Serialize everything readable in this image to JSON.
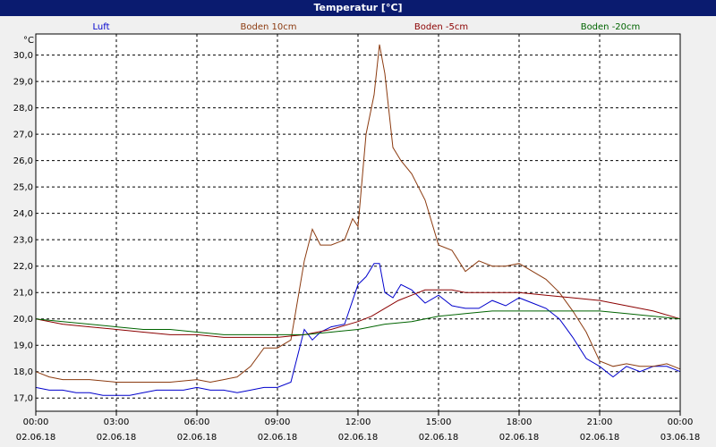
{
  "window": {
    "title": "Temperatur [°C]"
  },
  "chart_data": {
    "type": "line",
    "title": "Temperatur [°C]",
    "ylabel": "°C",
    "xlabel": "",
    "ylim": [
      16.5,
      30.8
    ],
    "xlim": [
      0,
      24
    ],
    "grid": true,
    "legend_position": "top",
    "y_ticks": [
      "17,0",
      "18,0",
      "19,0",
      "20,0",
      "21,0",
      "22,0",
      "23,0",
      "24,0",
      "25,0",
      "26,0",
      "27,0",
      "28,0",
      "29,0",
      "30,0"
    ],
    "y_tick_values": [
      17,
      18,
      19,
      20,
      21,
      22,
      23,
      24,
      25,
      26,
      27,
      28,
      29,
      30
    ],
    "x_ticks": [
      {
        "x": 0,
        "time": "00:00",
        "date": "02.06.18"
      },
      {
        "x": 3,
        "time": "03:00",
        "date": "02.06.18"
      },
      {
        "x": 6,
        "time": "06:00",
        "date": "02.06.18"
      },
      {
        "x": 9,
        "time": "09:00",
        "date": "02.06.18"
      },
      {
        "x": 12,
        "time": "12:00",
        "date": "02.06.18"
      },
      {
        "x": 15,
        "time": "15:00",
        "date": "02.06.18"
      },
      {
        "x": 18,
        "time": "18:00",
        "date": "02.06.18"
      },
      {
        "x": 21,
        "time": "21:00",
        "date": "02.06.18"
      },
      {
        "x": 24,
        "time": "00:00",
        "date": "03.06.18"
      }
    ],
    "series": [
      {
        "name": "Luft",
        "color": "#0000cc",
        "x": [
          0,
          0.5,
          1,
          1.5,
          2,
          2.5,
          3,
          3.5,
          4,
          4.5,
          5,
          5.5,
          6,
          6.5,
          7,
          7.5,
          8,
          8.5,
          9,
          9.5,
          10,
          10.3,
          10.6,
          11,
          11.5,
          12,
          12.3,
          12.6,
          12.8,
          13,
          13.3,
          13.6,
          14,
          14.5,
          15,
          15.5,
          16,
          16.5,
          17,
          17.5,
          18,
          18.5,
          19,
          19.5,
          20,
          20.5,
          21,
          21.5,
          22,
          22.5,
          23,
          23.5,
          24
        ],
        "y": [
          17.4,
          17.3,
          17.3,
          17.2,
          17.2,
          17.1,
          17.1,
          17.1,
          17.2,
          17.3,
          17.3,
          17.3,
          17.4,
          17.3,
          17.3,
          17.2,
          17.3,
          17.4,
          17.4,
          17.6,
          19.6,
          19.2,
          19.5,
          19.7,
          19.8,
          21.3,
          21.6,
          22.1,
          22.1,
          21.0,
          20.8,
          21.3,
          21.1,
          20.6,
          20.9,
          20.5,
          20.4,
          20.4,
          20.7,
          20.5,
          20.8,
          20.6,
          20.4,
          20.0,
          19.3,
          18.5,
          18.2,
          17.8,
          18.2,
          18.0,
          18.2,
          18.2,
          18.0
        ]
      },
      {
        "name": "Boden 10cm",
        "color": "#8b3a0f",
        "x": [
          0,
          0.5,
          1,
          2,
          3,
          4,
          5,
          6,
          6.5,
          7,
          7.5,
          8,
          8.5,
          9,
          9.5,
          10,
          10.3,
          10.6,
          11,
          11.5,
          11.8,
          12,
          12.3,
          12.6,
          12.8,
          13,
          13.3,
          13.6,
          14,
          14.5,
          15,
          15.5,
          16,
          16.5,
          17,
          17.5,
          18,
          18.5,
          19,
          19.5,
          20,
          20.5,
          21,
          21.5,
          22,
          22.5,
          23,
          23.5,
          24
        ],
        "y": [
          18.0,
          17.8,
          17.7,
          17.7,
          17.6,
          17.6,
          17.6,
          17.7,
          17.6,
          17.7,
          17.8,
          18.2,
          18.9,
          18.9,
          19.2,
          22.2,
          23.4,
          22.8,
          22.8,
          23.0,
          23.8,
          23.5,
          27.0,
          28.5,
          30.4,
          29.3,
          26.5,
          26.0,
          25.5,
          24.5,
          22.8,
          22.6,
          21.8,
          22.2,
          22.0,
          22.0,
          22.1,
          21.8,
          21.5,
          21.0,
          20.3,
          19.5,
          18.4,
          18.2,
          18.3,
          18.2,
          18.2,
          18.3,
          18.1
        ]
      },
      {
        "name": "Boden -5cm",
        "color": "#8b0000",
        "x": [
          0,
          1,
          2,
          3,
          4,
          5,
          6,
          7,
          8,
          9,
          10,
          11,
          12,
          12.5,
          13,
          13.5,
          14,
          14.5,
          15,
          15.5,
          16,
          17,
          18,
          19,
          20,
          21,
          22,
          23,
          24
        ],
        "y": [
          20.0,
          19.8,
          19.7,
          19.6,
          19.5,
          19.4,
          19.4,
          19.3,
          19.3,
          19.3,
          19.4,
          19.6,
          19.9,
          20.1,
          20.4,
          20.7,
          20.9,
          21.1,
          21.1,
          21.1,
          21.0,
          21.0,
          21.0,
          20.9,
          20.8,
          20.7,
          20.5,
          20.3,
          20.0
        ]
      },
      {
        "name": "Boden -20cm",
        "color": "#006400",
        "x": [
          0,
          1,
          2,
          3,
          4,
          5,
          6,
          7,
          8,
          9,
          10,
          11,
          12,
          13,
          14,
          15,
          16,
          17,
          18,
          19,
          20,
          21,
          22,
          23,
          24
        ],
        "y": [
          20.0,
          19.9,
          19.8,
          19.7,
          19.6,
          19.6,
          19.5,
          19.4,
          19.4,
          19.4,
          19.4,
          19.5,
          19.6,
          19.8,
          19.9,
          20.1,
          20.2,
          20.3,
          20.3,
          20.3,
          20.3,
          20.3,
          20.2,
          20.1,
          20.0
        ]
      }
    ]
  }
}
